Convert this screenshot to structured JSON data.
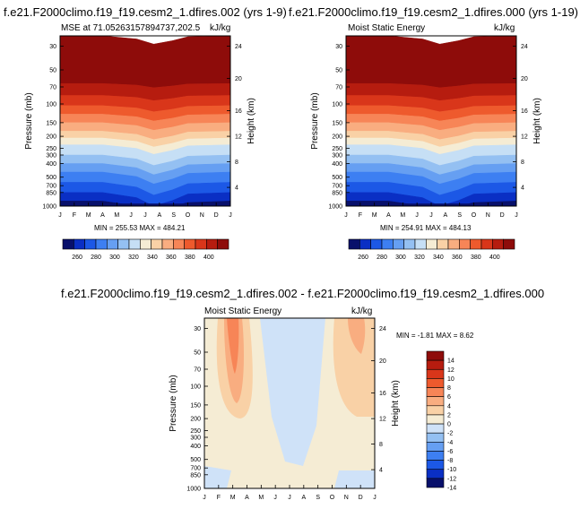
{
  "panels": [
    {
      "title": "f.e21.F2000climo.f19_f19.cesm2_1.dfires.002 (yrs 1-9)",
      "left_label": "MSE at 71.05263157894737,202.5",
      "right_label": "kJ/kg",
      "stats": "MIN = 255.53 MAX = 484.21",
      "ylabel": "Pressure (mb)",
      "y2label": "Height (km)"
    },
    {
      "title": "f.e21.F2000climo.f19_f19.cesm2_1.dfires.000 (yrs 1-19)",
      "left_label": "Moist Static Energy",
      "right_label": "kJ/kg",
      "stats": "MIN = 254.91 MAX = 484.13",
      "ylabel": "Pressure (mb)",
      "y2label": "Height (km)"
    },
    {
      "title": "f.e21.F2000climo.f19_f19.cesm2_1.dfires.002 - f.e21.F2000climo.f19_f19.cesm2_1.dfires.000",
      "left_label": "Moist Static Energy",
      "right_label": "kJ/kg",
      "stats": "MIN =  -1.81 MAX =   8.62",
      "ylabel": "Pressure (mb)",
      "y2label": "Height (km)"
    }
  ],
  "chart_data": [
    {
      "type": "heatmap",
      "x_categories": [
        "J",
        "F",
        "M",
        "A",
        "M",
        "J",
        "J",
        "A",
        "S",
        "O",
        "N",
        "D",
        "J"
      ],
      "pressure_ticks": [
        "30",
        "50",
        "70",
        "100",
        "150",
        "200",
        "250",
        "300",
        "400",
        "500",
        "700",
        "850",
        "1000"
      ],
      "height_ticks": [
        "24",
        "20",
        "16",
        "12",
        "8",
        "4"
      ],
      "colorbar_ticks": [
        "260",
        "280",
        "300",
        "320",
        "340",
        "360",
        "380",
        "400"
      ],
      "colorbar_colors": [
        "#08106b",
        "#0a2fc4",
        "#1c58e6",
        "#3d7ff2",
        "#669ff2",
        "#94c0f2",
        "#c6dff5",
        "#f5ecd4",
        "#f9d1a6",
        "#f9ad80",
        "#f78557",
        "#ee5a2d",
        "#d9361a",
        "#b61c0f",
        "#8e0c0a"
      ],
      "min": 255.53,
      "max": 484.21
    },
    {
      "type": "heatmap",
      "x_categories": [
        "J",
        "F",
        "M",
        "A",
        "M",
        "J",
        "J",
        "A",
        "S",
        "O",
        "N",
        "D",
        "J"
      ],
      "pressure_ticks": [
        "30",
        "50",
        "70",
        "100",
        "150",
        "200",
        "250",
        "300",
        "400",
        "500",
        "700",
        "850",
        "1000"
      ],
      "height_ticks": [
        "24",
        "20",
        "16",
        "12",
        "8",
        "4"
      ],
      "colorbar_ticks": [
        "260",
        "280",
        "300",
        "320",
        "340",
        "360",
        "380",
        "400"
      ],
      "colorbar_colors": [
        "#08106b",
        "#0a2fc4",
        "#1c58e6",
        "#3d7ff2",
        "#669ff2",
        "#94c0f2",
        "#c6dff5",
        "#f5ecd4",
        "#f9d1a6",
        "#f9ad80",
        "#f78557",
        "#ee5a2d",
        "#d9361a",
        "#b61c0f",
        "#8e0c0a"
      ],
      "min": 254.91,
      "max": 484.13
    },
    {
      "type": "heatmap",
      "x_categories": [
        "J",
        "F",
        "M",
        "A",
        "M",
        "J",
        "J",
        "A",
        "S",
        "O",
        "N",
        "D",
        "J"
      ],
      "pressure_ticks": [
        "30",
        "50",
        "70",
        "100",
        "150",
        "200",
        "250",
        "300",
        "400",
        "500",
        "700",
        "850",
        "1000"
      ],
      "height_ticks": [
        "24",
        "20",
        "16",
        "12",
        "8",
        "4"
      ],
      "colorbar_ticks": [
        "14",
        "12",
        "10",
        "8",
        "6",
        "4",
        "2",
        "0",
        "-2",
        "-4",
        "-6",
        "-8",
        "-10",
        "-12",
        "-14"
      ],
      "colorbar_colors": [
        "#8e0c0a",
        "#b61c0f",
        "#d9361a",
        "#ee5a2d",
        "#f78557",
        "#f9ad80",
        "#f9d1a6",
        "#f5ecd4",
        "#cfe2f8",
        "#94c0f2",
        "#669ff2",
        "#3d7ff2",
        "#1c58e6",
        "#0a2fc4",
        "#08106b"
      ],
      "min": -1.81,
      "max": 8.62
    }
  ]
}
